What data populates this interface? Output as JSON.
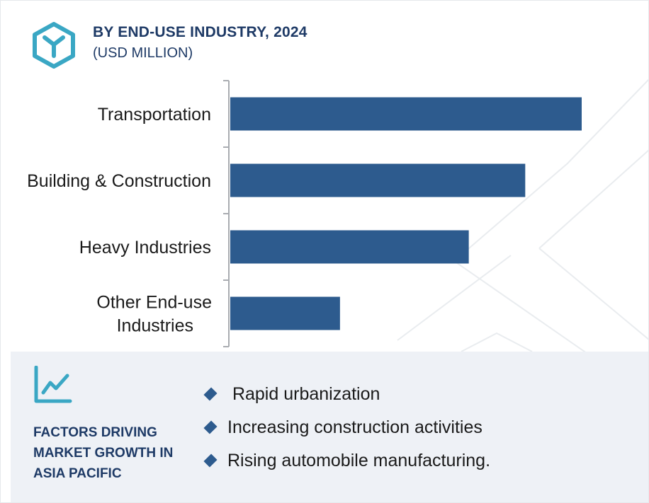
{
  "header": {
    "title": "BY END-USE INDUSTRY, 2024",
    "subtitle": "(USD MILLION)",
    "icon": "hexagon-y-icon"
  },
  "colors": {
    "bar": "#2d5b8e",
    "title": "#1e3a66",
    "accent": "#3aa7c4",
    "panel": "#eef1f6"
  },
  "chart_data": {
    "type": "bar",
    "orientation": "horizontal",
    "title": "BY END-USE INDUSTRY, 2024",
    "subtitle": "(USD MILLION)",
    "categories": [
      [
        "Transportation"
      ],
      [
        "Building & Construction"
      ],
      [
        "Heavy Industries"
      ],
      [
        "Other End-use",
        "Industries"
      ]
    ],
    "values": [
      100,
      84,
      68,
      31.5
    ],
    "value_axis_visible": false,
    "value_max": 100,
    "grid": false,
    "legend": "none"
  },
  "factors": {
    "icon": "line-chart-icon",
    "title_lines": [
      "FACTORS DRIVING",
      "MARKET GROWTH IN",
      "ASIA PACIFIC"
    ],
    "items": [
      " Rapid urbanization",
      "Increasing construction activities",
      "Rising automobile manufacturing."
    ]
  }
}
